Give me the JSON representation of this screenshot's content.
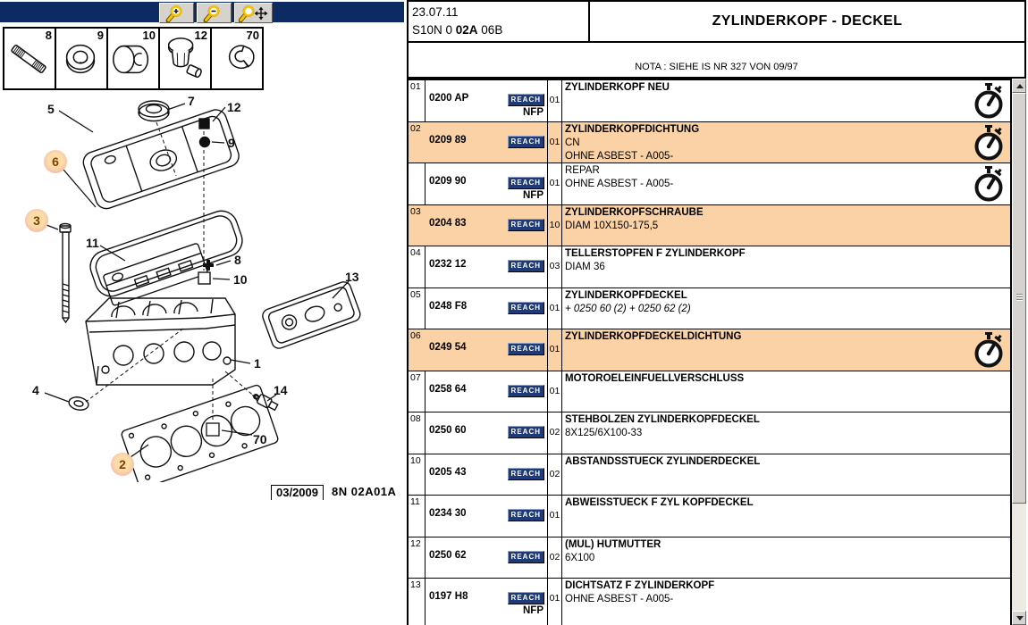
{
  "toolbar": {
    "buttons": [
      {
        "name": "zoom-in",
        "icon": "magnifier-plus-icon"
      },
      {
        "name": "zoom-out",
        "icon": "magnifier-minus-icon"
      },
      {
        "name": "zoom-pan",
        "icon": "magnifier-move-icon"
      }
    ]
  },
  "header": {
    "date": "23.07.11",
    "code_prefix": "S10N 0 ",
    "code_bold": "02A",
    "code_suffix": " 06B",
    "title": "ZYLINDERKOPF - DECKEL",
    "note": "NOTA : SIEHE IS NR 327 VON 09/97"
  },
  "thumbnails": [
    {
      "num": "8",
      "icon": "stud-bolt-icon"
    },
    {
      "num": "9",
      "icon": "seal-ring-icon"
    },
    {
      "num": "10",
      "icon": "spacer-bush-icon"
    },
    {
      "num": "12",
      "icon": "flanged-nut-icon"
    },
    {
      "num": "70",
      "icon": "clip-sleeve-icon"
    }
  ],
  "diagram": {
    "caption_date": "03/2009",
    "caption_code": "8N 02A01A",
    "callouts": {
      "c1": "1",
      "c2": "2",
      "c3": "3",
      "c4": "4",
      "c5": "5",
      "c6": "6",
      "c7": "7",
      "c8": "8",
      "c9": "9",
      "c10": "10",
      "c11": "11",
      "c12": "12",
      "c13": "13",
      "c14": "14",
      "c70": "70"
    },
    "highlighted_callouts": [
      "2",
      "3",
      "6"
    ]
  },
  "table": {
    "reach_label": "REACH",
    "nfp_label": "NFP",
    "rows": [
      {
        "num": "01",
        "ref": "0200 AP",
        "reach": true,
        "nfp": true,
        "qty": "01",
        "lines": [
          {
            "t": "ZYLINDERKOPF NEU",
            "b": true
          }
        ],
        "hl": false,
        "clock": true
      },
      {
        "num": "02",
        "ref": "0209 89",
        "reach": true,
        "nfp": false,
        "qty": "01",
        "lines": [
          {
            "t": "ZYLINDERKOPFDICHTUNG",
            "b": true
          },
          {
            "t": "CN"
          },
          {
            "t": "OHNE ASBEST - A005-"
          }
        ],
        "hl": true,
        "clock": true
      },
      {
        "num": "",
        "ref": "0209 90",
        "reach": true,
        "nfp": true,
        "qty": "01",
        "lines": [
          {
            "t": "REPAR"
          },
          {
            "t": "OHNE ASBEST - A005-"
          }
        ],
        "hl": false,
        "clock": true
      },
      {
        "num": "03",
        "ref": "0204 83",
        "reach": true,
        "nfp": false,
        "qty": "10",
        "lines": [
          {
            "t": "ZYLINDERKOPFSCHRAUBE",
            "b": true
          },
          {
            "t": "DIAM 10X150-175,5"
          }
        ],
        "hl": true,
        "clock": false
      },
      {
        "num": "04",
        "ref": "0232 12",
        "reach": true,
        "nfp": false,
        "qty": "03",
        "lines": [
          {
            "t": "TELLERSTOPFEN F ZYLINDERKOPF",
            "b": true
          },
          {
            "t": "DIAM 36"
          }
        ],
        "hl": false,
        "clock": false
      },
      {
        "num": "05",
        "ref": "0248 F8",
        "reach": true,
        "nfp": false,
        "qty": "01",
        "lines": [
          {
            "t": "ZYLINDERKOPFDECKEL",
            "b": true
          },
          {
            "t": "+ 0250 60 (2) + 0250 62 (2)",
            "i": true
          }
        ],
        "hl": false,
        "clock": false
      },
      {
        "num": "06",
        "ref": "0249 54",
        "reach": true,
        "nfp": false,
        "qty": "01",
        "lines": [
          {
            "t": "ZYLINDERKOPFDECKELDICHTUNG",
            "b": true
          }
        ],
        "hl": true,
        "clock": true
      },
      {
        "num": "07",
        "ref": "0258 64",
        "reach": true,
        "nfp": false,
        "qty": "01",
        "lines": [
          {
            "t": "MOTOROELEINFUELLVERSCHLUSS",
            "b": true
          }
        ],
        "hl": false,
        "clock": false
      },
      {
        "num": "08",
        "ref": "0250 60",
        "reach": true,
        "nfp": false,
        "qty": "02",
        "lines": [
          {
            "t": "STEHBOLZEN ZYLINDERKOPFDECKEL",
            "b": true
          },
          {
            "t": "8X125/6X100-33"
          }
        ],
        "hl": false,
        "clock": false
      },
      {
        "num": "10",
        "ref": "0205 43",
        "reach": true,
        "nfp": false,
        "qty": "02",
        "lines": [
          {
            "t": "ABSTANDSSTUECK ZYLINDERDECKEL",
            "b": true
          }
        ],
        "hl": false,
        "clock": false
      },
      {
        "num": "11",
        "ref": "0234 30",
        "reach": true,
        "nfp": false,
        "qty": "01",
        "lines": [
          {
            "t": "ABWEISSTUECK F ZYL KOPFDECKEL",
            "b": true
          }
        ],
        "hl": false,
        "clock": false
      },
      {
        "num": "12",
        "ref": "0250 62",
        "reach": true,
        "nfp": false,
        "qty": "02",
        "lines": [
          {
            "t": "(MUL) HUTMUTTER",
            "b": true
          },
          {
            "t": "6X100"
          }
        ],
        "hl": false,
        "clock": false
      },
      {
        "num": "13",
        "ref": "0197 H8",
        "reach": true,
        "nfp": true,
        "qty": "01",
        "lines": [
          {
            "t": "DICHTSATZ F ZYLINDERKOPF",
            "b": true
          },
          {
            "t": "OHNE ASBEST - A005-"
          }
        ],
        "hl": false,
        "clock": false
      }
    ]
  },
  "colors": {
    "navy": "#0D2A63",
    "highlight_row": "#FAD2A6",
    "reach_badge": "#1E3A78",
    "callout_inner": "#FCDCA8",
    "callout_outer": "#F3B4AA"
  }
}
